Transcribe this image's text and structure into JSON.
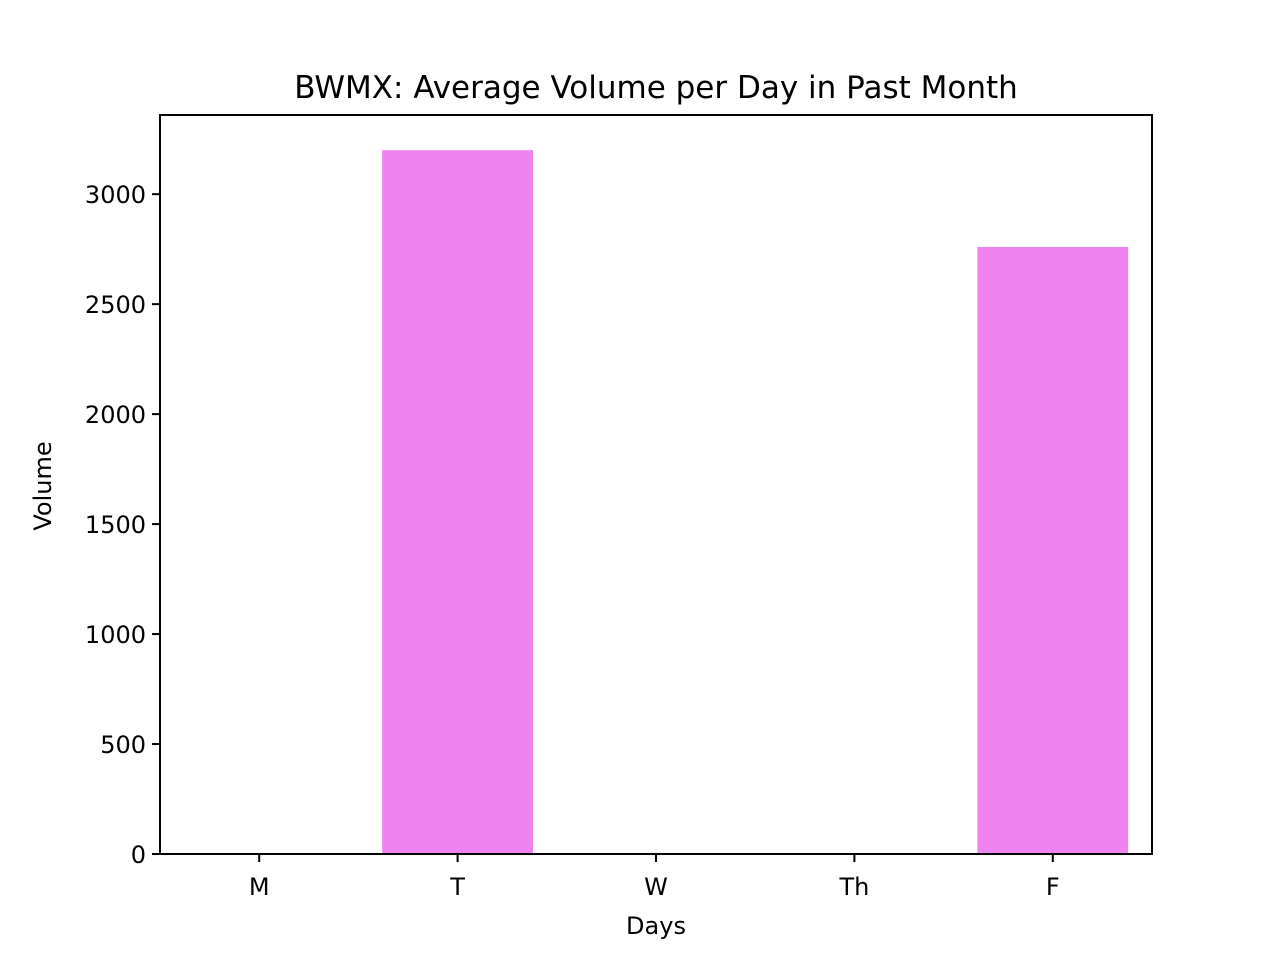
{
  "chart_data": {
    "type": "bar",
    "title": "BWMX: Average Volume per Day in Past Month",
    "xlabel": "Days",
    "ylabel": "Volume",
    "categories": [
      "M",
      "T",
      "W",
      "Th",
      "F"
    ],
    "values": [
      0,
      3200,
      0,
      0,
      2760
    ],
    "ylim": [
      0,
      3360
    ],
    "yticks": [
      0,
      500,
      1000,
      1500,
      2000,
      2500,
      3000
    ],
    "bar_color": "#EE82EE",
    "grid": false,
    "legend": "none"
  }
}
